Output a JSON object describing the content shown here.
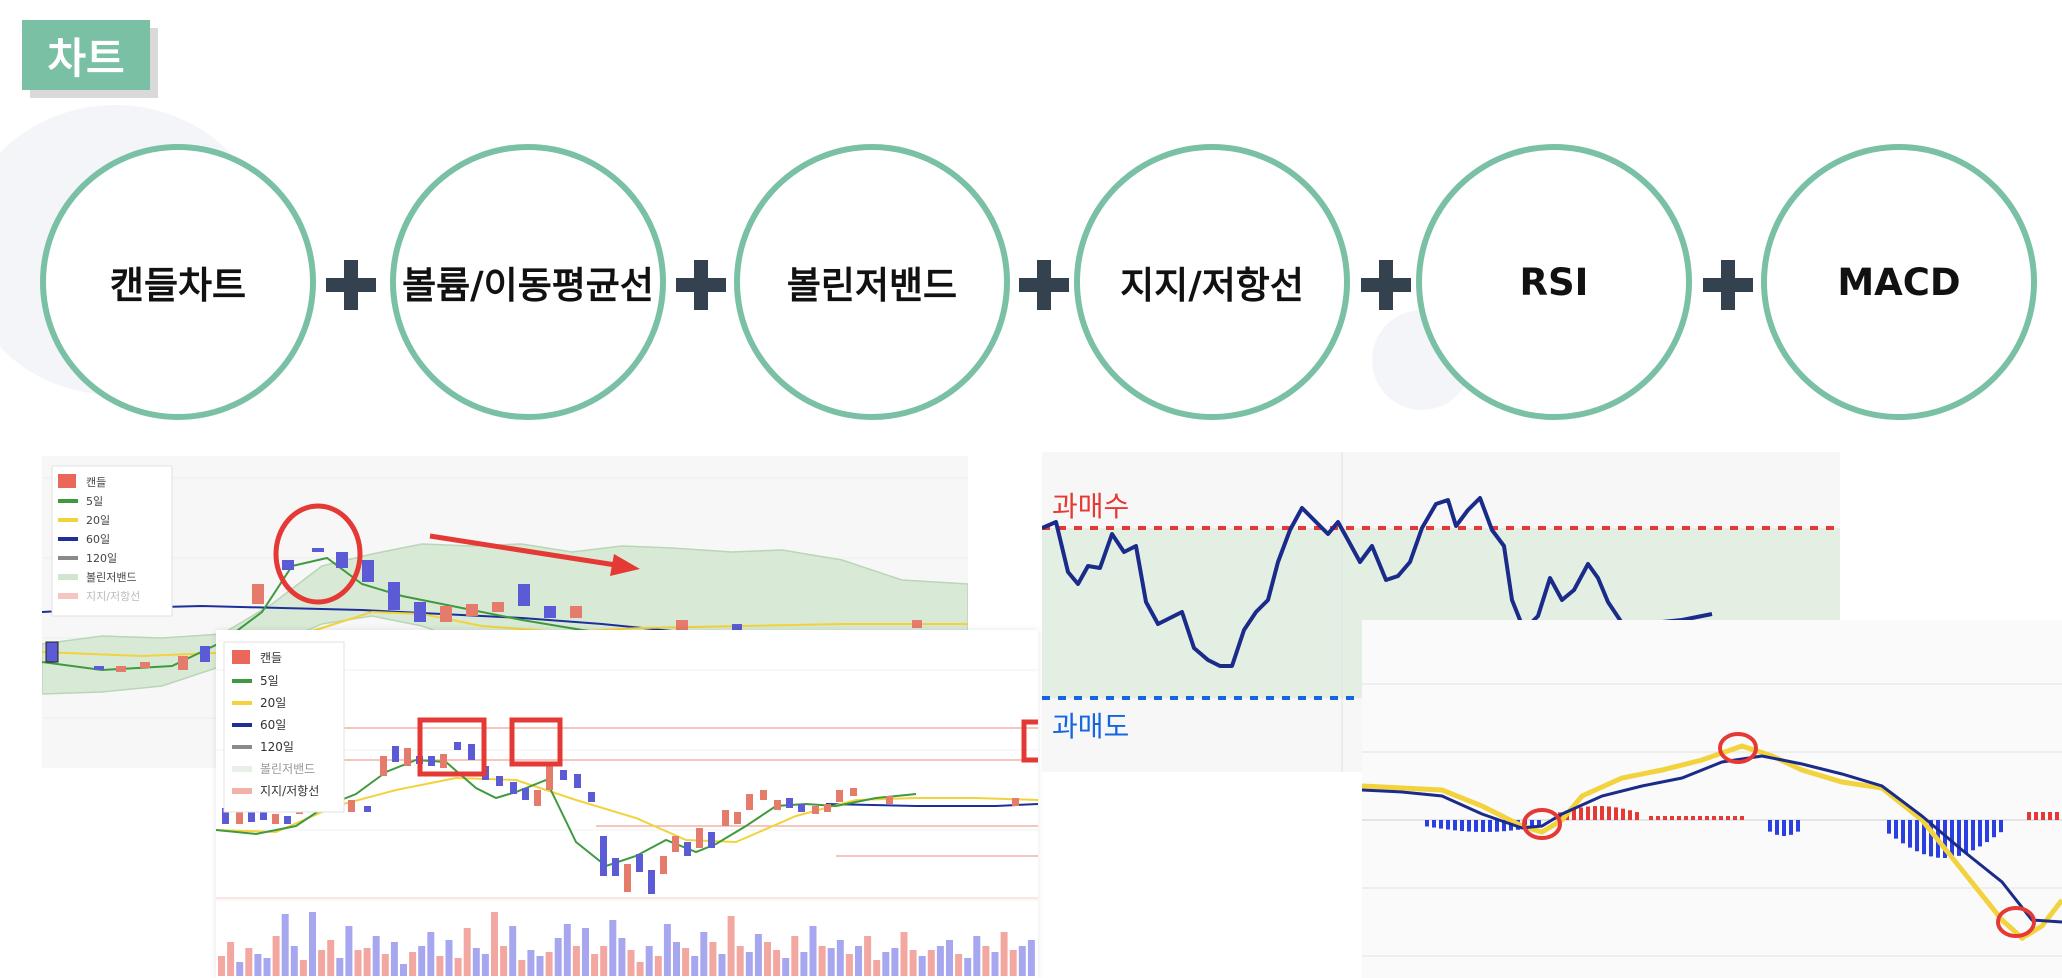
{
  "header": {
    "title": "차트"
  },
  "indicators": [
    {
      "label": "캔들차트"
    },
    {
      "label": "볼륨/이동평균선"
    },
    {
      "label": "볼린저밴드"
    },
    {
      "label": "지지/저항선"
    },
    {
      "label": "RSI"
    },
    {
      "label": "MACD"
    }
  ],
  "legend_back": {
    "items": [
      "캔들",
      "5일",
      "20일",
      "60일",
      "120일",
      "볼린저밴드",
      "지지/저항선"
    ],
    "colors": [
      "#e74c3c",
      "#3f9a3f",
      "#f2d33d",
      "#1f2f9a",
      "#8a8a8a",
      "#cfe6cf",
      "#f5c6c0"
    ]
  },
  "legend_front": {
    "items": [
      "캔들",
      "5일",
      "20일",
      "60일",
      "120일",
      "볼린저밴드",
      "지지/저항선"
    ],
    "colors": [
      "#e74c3c",
      "#3f9a3f",
      "#f2d33d",
      "#1f2f9a",
      "#8a8a8a",
      "#e6f0e6",
      "#f2b2a8"
    ]
  },
  "rsi": {
    "overbought_label": "과매수",
    "oversold_label": "과매도"
  },
  "colors": {
    "accent": "#79c0a4",
    "plus": "#34424f",
    "highlight_red": "#e53935",
    "overbought_red": "#e53935",
    "oversold_blue": "#1565e0",
    "candle_up": "#e57b6a",
    "candle_down": "#5b5bd6"
  }
}
